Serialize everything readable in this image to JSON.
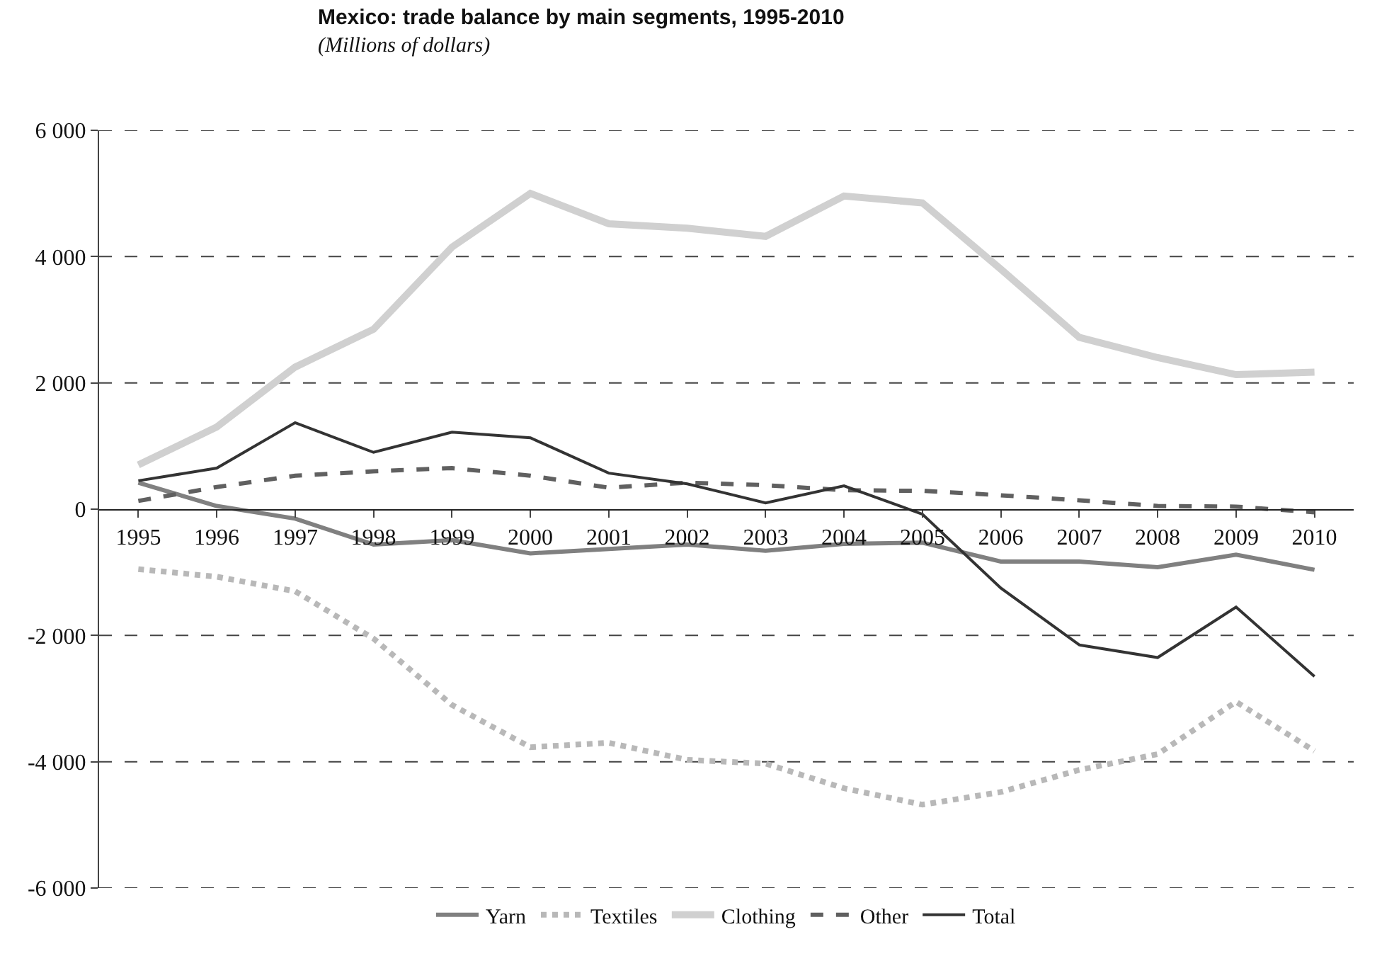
{
  "chart_data": {
    "type": "line",
    "title": "Mexico: trade balance by main segments, 1995-2010",
    "subtitle": "(Millions of dollars)",
    "categories": [
      "1995",
      "1996",
      "1997",
      "1998",
      "1999",
      "2000",
      "2001",
      "2002",
      "2003",
      "2004",
      "2005",
      "2006",
      "2007",
      "2008",
      "2009",
      "2010"
    ],
    "series": [
      {
        "name": "Yarn",
        "color": "#808080",
        "line_style": "solid",
        "values": [
          420,
          50,
          -150,
          -560,
          -490,
          -700,
          -630,
          -560,
          -660,
          -550,
          -530,
          -830,
          -830,
          -920,
          -720,
          -960
        ]
      },
      {
        "name": "Textiles",
        "color": "#b8b8b8",
        "line_style": "dotted",
        "values": [
          -950,
          -1070,
          -1300,
          -2050,
          -3100,
          -3770,
          -3700,
          -3970,
          -4030,
          -4420,
          -4680,
          -4480,
          -4130,
          -3880,
          -3050,
          -3830
        ]
      },
      {
        "name": "Clothing",
        "color": "#d0d0d0",
        "line_style": "solid",
        "values": [
          700,
          1300,
          2250,
          2850,
          4150,
          5000,
          4520,
          4450,
          4320,
          4960,
          4850,
          3800,
          2720,
          2400,
          2130,
          2170
        ]
      },
      {
        "name": "Other",
        "color": "#606060",
        "line_style": "dashed",
        "values": [
          130,
          350,
          530,
          600,
          650,
          530,
          340,
          420,
          380,
          300,
          290,
          220,
          140,
          50,
          40,
          -50
        ]
      },
      {
        "name": "Total",
        "color": "#333333",
        "line_style": "solid",
        "values": [
          450,
          650,
          1370,
          900,
          1220,
          1130,
          570,
          400,
          100,
          370,
          -80,
          -1250,
          -2150,
          -2350,
          -1550,
          -2650
        ]
      }
    ],
    "ylim": [
      -6000,
      6000
    ],
    "yticks": [
      {
        "value": -6000,
        "label": "-6 000"
      },
      {
        "value": -4000,
        "label": "-4 000"
      },
      {
        "value": -2000,
        "label": "-2 000"
      },
      0,
      {
        "value": 2000,
        "label": "2 000"
      },
      {
        "value": 4000,
        "label": "4 000"
      },
      {
        "value": 6000,
        "label": "6 000"
      }
    ],
    "grid": "y",
    "legend": "bottom"
  }
}
